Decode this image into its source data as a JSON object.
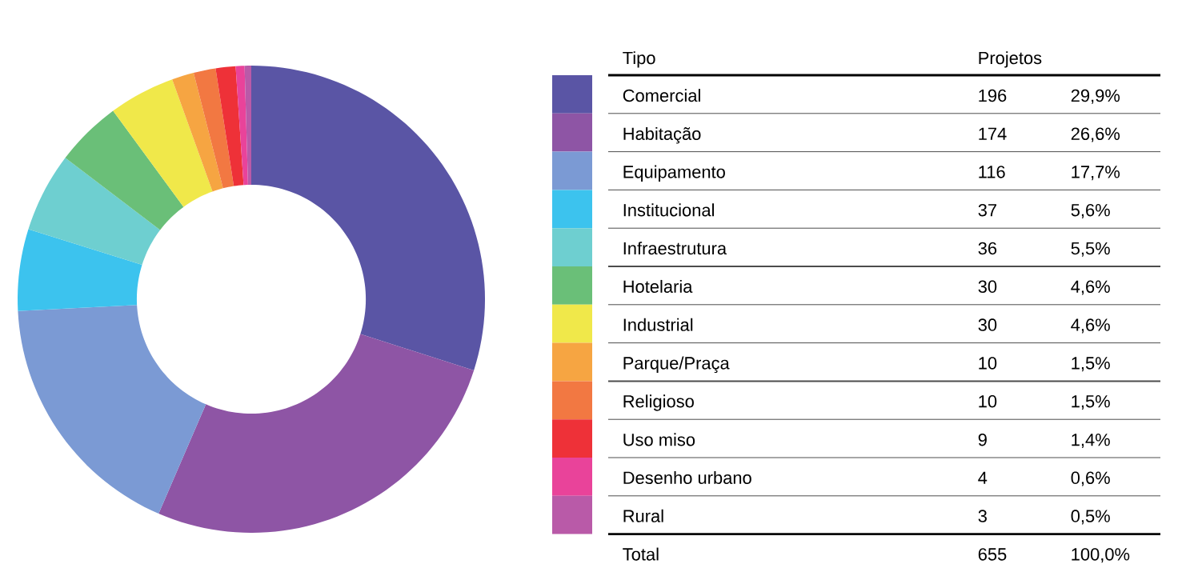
{
  "chart_data": {
    "type": "donut",
    "legend_title": "Tipo",
    "legend": "right",
    "categories": [
      "Comercial",
      "Habitação",
      "Equipamento",
      "Institucional",
      "Infraestrutura",
      "Hotelaria",
      "Industrial",
      "Parque/Praça",
      "Religioso",
      "Uso miso",
      "Desenho urbano",
      "Rural"
    ],
    "values": [
      196,
      174,
      116,
      37,
      36,
      30,
      30,
      10,
      10,
      9,
      4,
      3
    ],
    "value_labels": [
      "196",
      "174",
      "116",
      "37",
      "36",
      "30",
      "30",
      "10",
      "10",
      "9",
      "4",
      "3"
    ],
    "colors": [
      "#5a55a5",
      "#8e55a5",
      "#7b9ad4",
      "#3cc3ee",
      "#6ecfd0",
      "#6abf78",
      "#f0e84a",
      "#f6a542",
      "#f27842",
      "#ee3138",
      "#e9439a",
      "#b95aa8"
    ],
    "annotations": [
      "Projetos",
      "Total",
      "655",
      "100,0%",
      "29,9%",
      "26,6%",
      "17,7%",
      "5,6%",
      "5,5%",
      "4,6%",
      "4,6%",
      "1,5%",
      "1,5%",
      "1,4%",
      "0,6%",
      "0,5%"
    ]
  }
}
